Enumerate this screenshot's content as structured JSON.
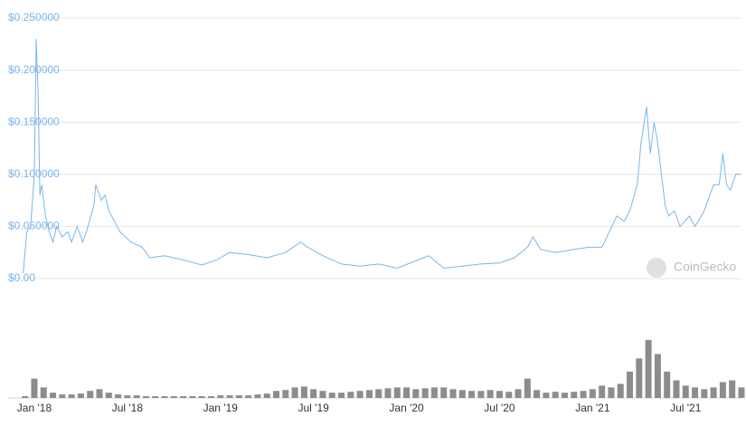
{
  "chart_data": [
    {
      "type": "line",
      "watermark": "CoinGecko",
      "color": "#7cb5ec",
      "x": [
        2017.94,
        2017.96,
        2017.98,
        2018.0,
        2018.01,
        2018.02,
        2018.03,
        2018.04,
        2018.06,
        2018.08,
        2018.1,
        2018.12,
        2018.15,
        2018.18,
        2018.2,
        2018.23,
        2018.26,
        2018.28,
        2018.32,
        2018.33,
        2018.36,
        2018.38,
        2018.4,
        2018.43,
        2018.46,
        2018.52,
        2018.58,
        2018.62,
        2018.7,
        2018.8,
        2018.9,
        2018.98,
        2019.05,
        2019.15,
        2019.25,
        2019.35,
        2019.43,
        2019.47,
        2019.55,
        2019.65,
        2019.75,
        2019.85,
        2019.95,
        2020.05,
        2020.12,
        2020.2,
        2020.3,
        2020.4,
        2020.5,
        2020.58,
        2020.65,
        2020.68,
        2020.72,
        2020.8,
        2020.9,
        2020.98,
        2021.05,
        2021.09,
        2021.13,
        2021.17,
        2021.2,
        2021.24,
        2021.26,
        2021.29,
        2021.31,
        2021.33,
        2021.35,
        2021.37,
        2021.39,
        2021.41,
        2021.44,
        2021.47,
        2021.52,
        2021.55,
        2021.6,
        2021.65,
        2021.68,
        2021.7,
        2021.72,
        2021.74,
        2021.77,
        2021.8
      ],
      "values": [
        0.005,
        0.045,
        0.05,
        0.1,
        0.23,
        0.18,
        0.08,
        0.09,
        0.06,
        0.045,
        0.035,
        0.05,
        0.04,
        0.045,
        0.035,
        0.05,
        0.035,
        0.045,
        0.07,
        0.09,
        0.075,
        0.08,
        0.065,
        0.055,
        0.045,
        0.035,
        0.03,
        0.02,
        0.022,
        0.018,
        0.013,
        0.018,
        0.025,
        0.023,
        0.02,
        0.025,
        0.035,
        0.03,
        0.022,
        0.014,
        0.012,
        0.014,
        0.01,
        0.017,
        0.022,
        0.01,
        0.012,
        0.014,
        0.015,
        0.02,
        0.03,
        0.04,
        0.028,
        0.025,
        0.028,
        0.03,
        0.03,
        0.045,
        0.06,
        0.055,
        0.065,
        0.09,
        0.13,
        0.165,
        0.12,
        0.15,
        0.13,
        0.1,
        0.07,
        0.06,
        0.065,
        0.05,
        0.06,
        0.05,
        0.065,
        0.09,
        0.09,
        0.12,
        0.09,
        0.085,
        0.1,
        0.1
      ],
      "xlim": [
        2017.937,
        2021.8
      ],
      "xticks": [
        {
          "value": 2018.0,
          "label": "Jan '18"
        },
        {
          "value": 2018.5,
          "label": "Jul '18"
        },
        {
          "value": 2019.0,
          "label": "Jan '19"
        },
        {
          "value": 2019.5,
          "label": "Jul '19"
        },
        {
          "value": 2020.0,
          "label": "Jan '20"
        },
        {
          "value": 2020.5,
          "label": "Jul '20"
        },
        {
          "value": 2021.0,
          "label": "Jan '21"
        },
        {
          "value": 2021.5,
          "label": "Jul '21"
        }
      ],
      "ylim": [
        0,
        0.25
      ],
      "yticks": [
        {
          "value": 0,
          "label": "$0.00"
        },
        {
          "value": 0.05,
          "label": "$0.050000"
        },
        {
          "value": 0.1,
          "label": "$0.100000"
        },
        {
          "value": 0.15,
          "label": "$0.150000"
        },
        {
          "value": 0.2,
          "label": "$0.200000"
        },
        {
          "value": 0.25,
          "label": "$0.250000"
        }
      ],
      "grid": true
    },
    {
      "type": "bar",
      "color": "#8c8c8c",
      "x": [
        2017.95,
        2018.0,
        2018.05,
        2018.1,
        2018.15,
        2018.2,
        2018.25,
        2018.3,
        2018.35,
        2018.4,
        2018.45,
        2018.5,
        2018.55,
        2018.6,
        2018.65,
        2018.7,
        2018.75,
        2018.8,
        2018.85,
        2018.9,
        2018.95,
        2019.0,
        2019.05,
        2019.1,
        2019.15,
        2019.2,
        2019.25,
        2019.3,
        2019.35,
        2019.4,
        2019.45,
        2019.5,
        2019.55,
        2019.6,
        2019.65,
        2019.7,
        2019.75,
        2019.8,
        2019.85,
        2019.9,
        2019.95,
        2020.0,
        2020.05,
        2020.1,
        2020.15,
        2020.2,
        2020.25,
        2020.3,
        2020.35,
        2020.4,
        2020.45,
        2020.5,
        2020.55,
        2020.6,
        2020.65,
        2020.7,
        2020.75,
        2020.8,
        2020.85,
        2020.9,
        2020.95,
        2021.0,
        2021.05,
        2021.1,
        2021.15,
        2021.2,
        2021.25,
        2021.3,
        2021.35,
        2021.4,
        2021.45,
        2021.5,
        2021.55,
        2021.6,
        2021.65,
        2021.7,
        2021.75,
        2021.8
      ],
      "values": [
        2,
        22,
        12,
        6,
        4,
        4,
        5,
        8,
        10,
        6,
        4,
        3,
        3,
        2,
        2,
        2,
        2,
        2,
        2,
        2,
        2,
        3,
        3,
        3,
        3,
        4,
        5,
        8,
        9,
        12,
        13,
        10,
        8,
        6,
        6,
        7,
        8,
        9,
        10,
        11,
        12,
        12,
        10,
        11,
        12,
        12,
        10,
        9,
        8,
        8,
        9,
        8,
        7,
        10,
        22,
        9,
        6,
        7,
        6,
        7,
        8,
        10,
        14,
        12,
        16,
        30,
        45,
        66,
        50,
        30,
        20,
        14,
        12,
        10,
        12,
        18,
        20,
        12
      ],
      "ylim": [
        0,
        70
      ]
    }
  ]
}
